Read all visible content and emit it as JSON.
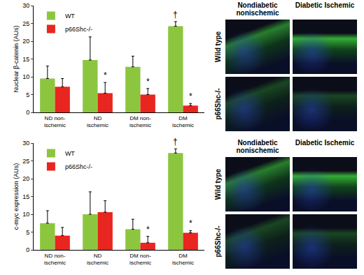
{
  "chart_data": [
    {
      "type": "bar",
      "y_label": "Nuclear β-catenin (AUs)",
      "categories": [
        "ND non-ischemic",
        "ND ischemic",
        "DM non-ischemic",
        "DM ischemic"
      ],
      "series": [
        {
          "name": "WT",
          "color": "#8cc63f",
          "values": [
            9.5,
            14.7,
            12.8,
            24.2
          ],
          "errors": [
            3.5,
            6.5,
            3.0,
            1.3
          ]
        },
        {
          "name": "p66Shc-/-",
          "color": "#e8251f",
          "values": [
            7.2,
            5.4,
            5.0,
            1.9
          ],
          "errors": [
            2.3,
            3.0,
            1.7,
            0.6
          ]
        }
      ],
      "annotations": [
        {
          "text": "*",
          "category": "ND ischemic",
          "series": "p66Shc-/-"
        },
        {
          "text": "*",
          "category": "DM non-ischemic",
          "series": "p66Shc-/-"
        },
        {
          "text": "*",
          "category": "DM ischemic",
          "series": "p66Shc-/-"
        },
        {
          "text": "†",
          "category": "DM ischemic",
          "series": "WT"
        }
      ],
      "ylim": [
        0,
        30
      ],
      "yticks": [
        0,
        5,
        10,
        15,
        20,
        25,
        30
      ],
      "legend": "top-left",
      "grid": false
    },
    {
      "type": "bar",
      "y_label": "c-myc expression (AUs)",
      "categories": [
        "ND non-ischemic",
        "ND ischemic",
        "DM non-ischemic",
        "DM ischemic"
      ],
      "series": [
        {
          "name": "WT",
          "color": "#8cc63f",
          "values": [
            7.5,
            10.0,
            5.8,
            27.2
          ],
          "errors": [
            3.5,
            6.3,
            2.8,
            1.2
          ]
        },
        {
          "name": "p66Shc-/-",
          "color": "#e8251f",
          "values": [
            4.0,
            10.6,
            2.0,
            4.8
          ],
          "errors": [
            2.3,
            3.2,
            1.8,
            0.6
          ]
        }
      ],
      "annotations": [
        {
          "text": "*",
          "category": "DM non-ischemic",
          "series": "p66Shc-/-"
        },
        {
          "text": "*",
          "category": "DM ischemic",
          "series": "p66Shc-/-"
        },
        {
          "text": "†",
          "category": "DM ischemic",
          "series": "WT"
        }
      ],
      "ylim": [
        0,
        30
      ],
      "yticks": [
        0,
        5,
        10,
        15,
        20,
        25,
        30
      ],
      "legend": "top-left",
      "grid": false
    }
  ],
  "image_panels": [
    {
      "columns": [
        "Nondiabetic nonischemic",
        "Diabetic Ischemic"
      ],
      "rows": [
        "Wild type",
        "p66Shc-/-"
      ]
    },
    {
      "columns": [
        "Nondiabetic nonischemic",
        "Diabetic Ischemic"
      ],
      "rows": [
        "Wild type",
        "p66Shc-/-"
      ]
    }
  ]
}
